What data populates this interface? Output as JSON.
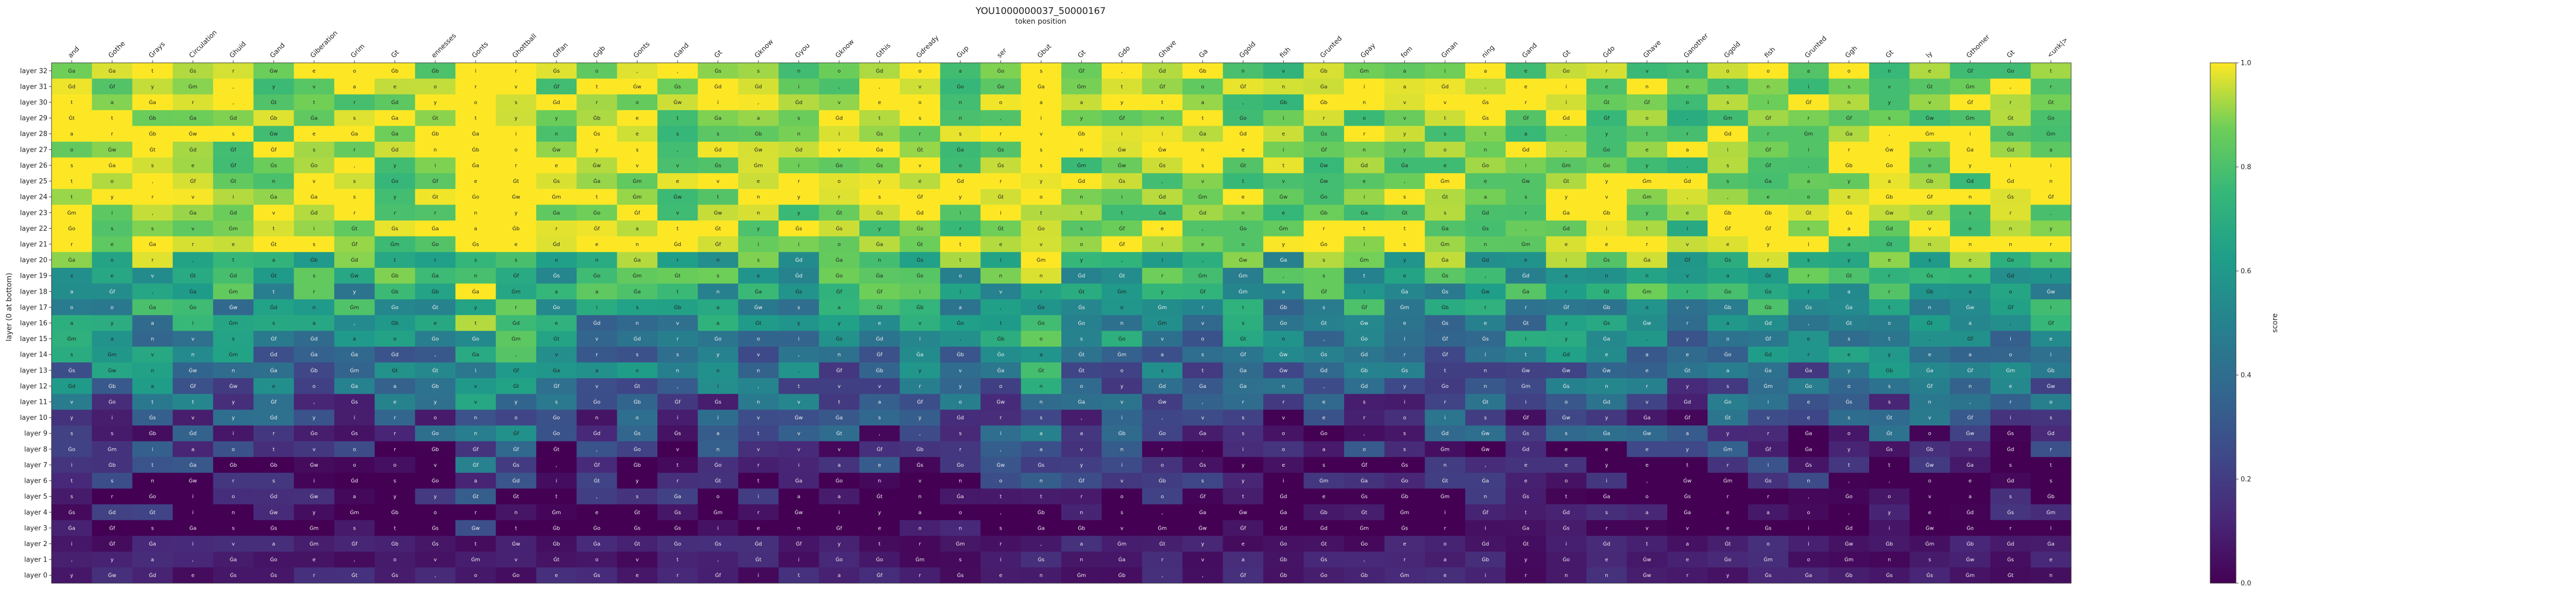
{
  "chart_data": {
    "type": "heatmap",
    "title": "YOU1000000037_50000167",
    "xlabel": "token position",
    "ylabel": "layer (0 at bottom)",
    "colorbar": {
      "label": "score",
      "range": [
        0.0,
        1.0
      ],
      "ticks": [
        "0.0",
        "0.2",
        "0.4",
        "0.6",
        "0.8",
        "1.0"
      ],
      "colormap": "viridis"
    },
    "x_tokens": [
      "and",
      "Gothe",
      "Grays",
      "Circulation",
      "Ghuid",
      "Gand",
      "Giberation",
      "Grim",
      "Gt",
      "ennesses",
      "Gonts",
      "Ghottball",
      "Gffan",
      "Ggb",
      "Gonts",
      "Gand",
      "Gt",
      "Gknow",
      "Gyou",
      "Gknow",
      "Gthis",
      "Gdready",
      "Gup",
      "ser",
      "Gbut",
      "Gt",
      "Gdo",
      "Ghave",
      "Ga",
      "Ggold",
      "fish",
      "Grunted",
      "Gpay",
      "fom",
      "Gman",
      "ning",
      "Gand",
      "Gt",
      "Gdo",
      "Ghave",
      "Ganother",
      "Ggold",
      "fish",
      "Grunted",
      "Ggh",
      "Gt",
      "ly",
      "Gthomer",
      "Gt",
      "<unk|>"
    ],
    "y_layers": [
      "layer 32",
      "layer 31",
      "layer 30",
      "layer 29",
      "layer 28",
      "layer 27",
      "layer 26",
      "layer 25",
      "layer 24",
      "layer 23",
      "layer 22",
      "layer 21",
      "layer 20",
      "layer 19",
      "layer 18",
      "layer 17",
      "layer 16",
      "layer 15",
      "layer 14",
      "layer 13",
      "layer 12",
      "layer 11",
      "layer 10",
      "layer 9",
      "layer 8",
      "layer 7",
      "layer 6",
      "layer 5",
      "layer 4",
      "layer 3",
      "layer 2",
      "layer 1",
      "layer 0"
    ],
    "cell_glyphs": [
      "a",
      "Ġt",
      "Ġs",
      "Ġa",
      "Ġw",
      "Ġo",
      "Ġm",
      "Ġf",
      "Ġb",
      "Ġd",
      "v",
      "y",
      "t",
      "i",
      "o",
      "s",
      "e",
      "n",
      "r",
      ","
    ],
    "grid": false
  }
}
